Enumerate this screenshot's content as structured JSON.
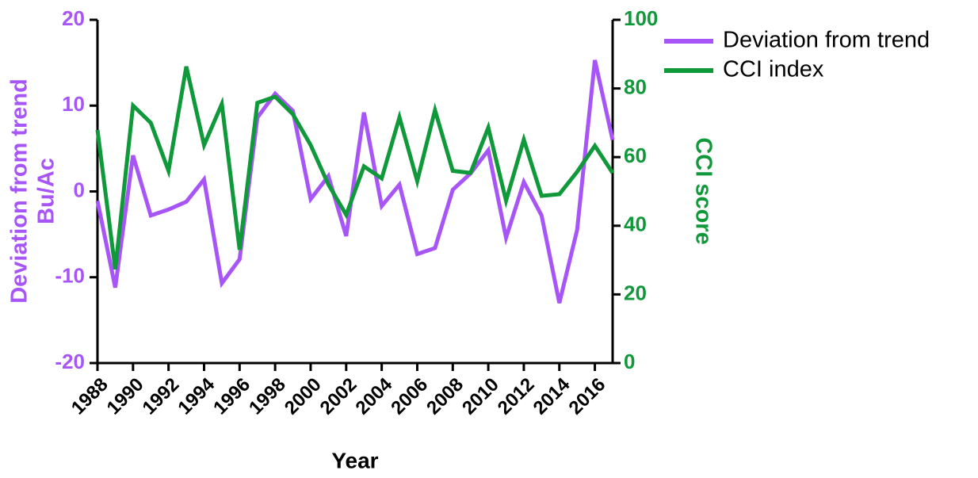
{
  "chart_data": {
    "type": "line",
    "x_label": "Year",
    "y_label": [
      "Deviation from trend",
      "Bu/Ac"
    ],
    "y2_label": "CCI score",
    "x": [
      1988,
      1989,
      1990,
      1991,
      1992,
      1993,
      1994,
      1995,
      1996,
      1997,
      1998,
      1999,
      2000,
      2001,
      2002,
      2003,
      2004,
      2005,
      2006,
      2007,
      2008,
      2009,
      2010,
      2011,
      2012,
      2013,
      2014,
      2015,
      2016,
      2017
    ],
    "series": [
      {
        "name": "Deviation from trend",
        "color": "#a855f7",
        "axis": "y",
        "values": [
          -1.1,
          -11.2,
          4.2,
          -2.8,
          -2.1,
          -1.2,
          1.4,
          -10.7,
          -7.9,
          8.6,
          11.4,
          9.4,
          -0.9,
          1.8,
          -5.2,
          9.2,
          -1.7,
          0.8,
          -7.3,
          -6.6,
          0.2,
          2.1,
          4.8,
          -5.4,
          1.1,
          -2.8,
          -13,
          -4.5,
          15.3,
          6
        ]
      },
      {
        "name": "CCI index",
        "color": "#10993a",
        "axis": "y2",
        "values": [
          67.9,
          27.3,
          75,
          70,
          56,
          86.4,
          63.5,
          75.5,
          33,
          75.8,
          77.6,
          72.5,
          63.5,
          52,
          43.2,
          57.3,
          53.8,
          71.6,
          53,
          73.7,
          56,
          55.4,
          68.6,
          47.3,
          65.1,
          48.7,
          49.2,
          55.7,
          63.3,
          55.4
        ]
      }
    ],
    "xlim": [
      1988,
      2017
    ],
    "xticks": [
      1988,
      1990,
      1992,
      1994,
      1996,
      1998,
      2000,
      2002,
      2004,
      2006,
      2008,
      2010,
      2012,
      2014,
      2016
    ],
    "ylim": [
      -20,
      20
    ],
    "yticks": [
      -20,
      -10,
      0,
      10,
      20
    ],
    "y2lim": [
      0,
      100
    ],
    "y2ticks": [
      0,
      20,
      40,
      60,
      80,
      100
    ],
    "legend": "top-right"
  }
}
